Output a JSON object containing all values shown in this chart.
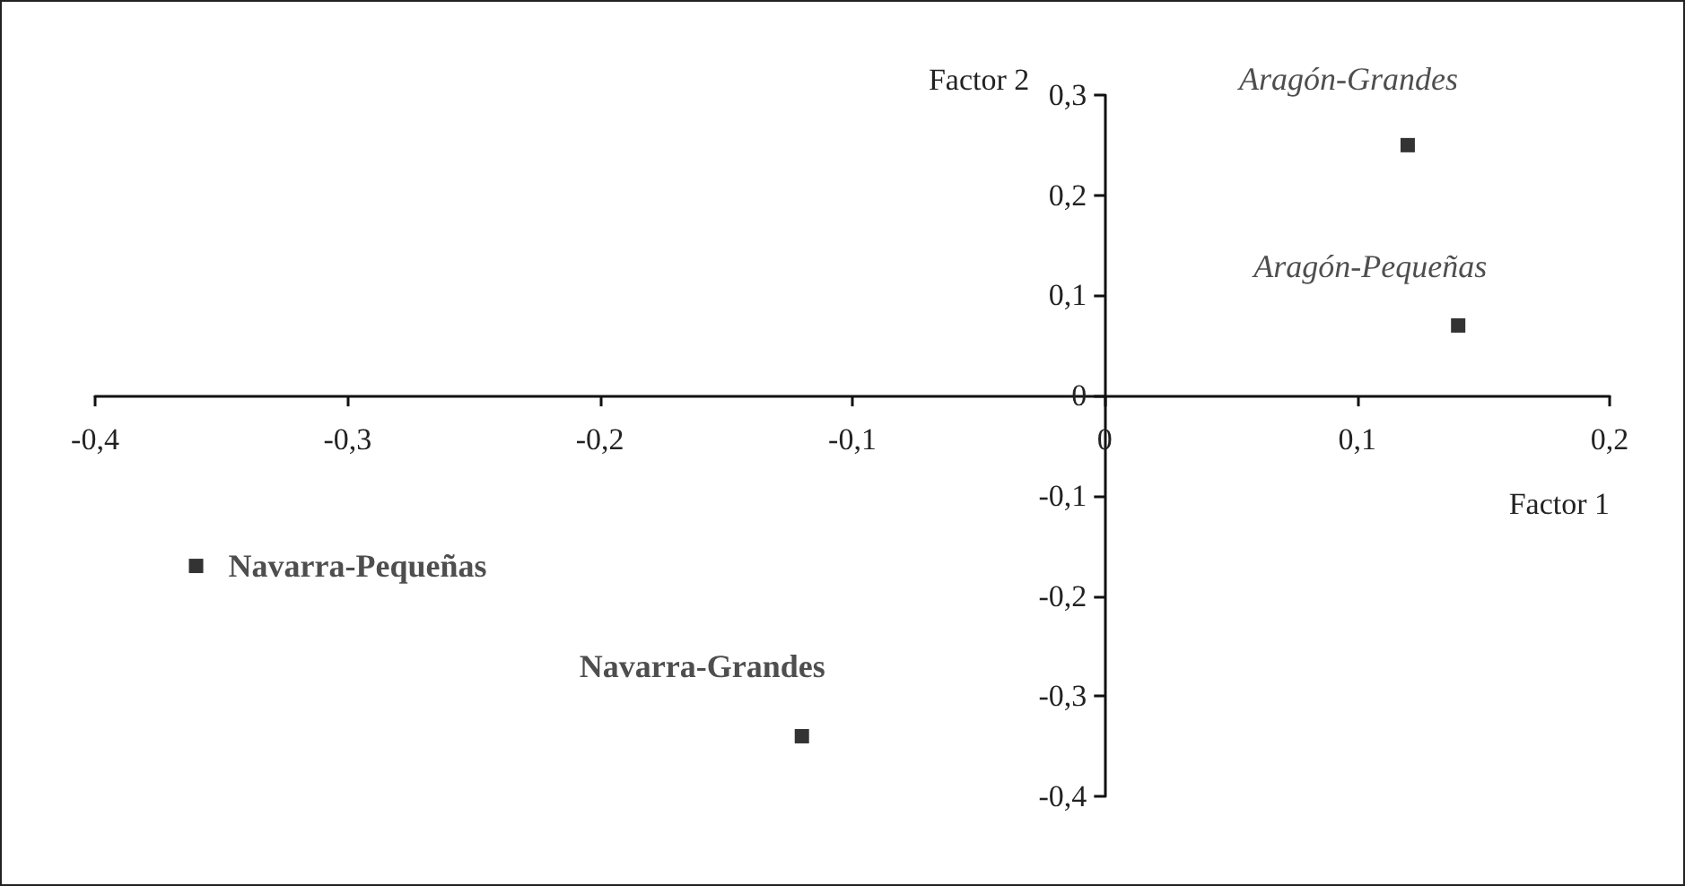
{
  "chart_data": {
    "type": "scatter",
    "xlabel": "Factor 1",
    "ylabel": "Factor 2",
    "xlim": [
      -0.4,
      0.2
    ],
    "xticks": [
      {
        "value": -0.4,
        "label": "-0,4"
      },
      {
        "value": -0.3,
        "label": "-0,3"
      },
      {
        "value": -0.2,
        "label": "-0,2"
      },
      {
        "value": -0.1,
        "label": "-0,1"
      },
      {
        "value": 0,
        "label": "0"
      },
      {
        "value": 0.1,
        "label": "0,1"
      },
      {
        "value": 0.2,
        "label": "0,2"
      }
    ],
    "ylim": [
      -0.4,
      0.3
    ],
    "yticks": [
      {
        "value": -0.4,
        "label": "-0,4"
      },
      {
        "value": -0.3,
        "label": "-0,3"
      },
      {
        "value": -0.2,
        "label": "-0,2"
      },
      {
        "value": -0.1,
        "label": "-0,1"
      },
      {
        "value": 0,
        "label": "0"
      },
      {
        "value": 0.1,
        "label": "0,1"
      },
      {
        "value": 0.2,
        "label": "0,2"
      },
      {
        "value": 0.3,
        "label": "0,3"
      }
    ],
    "legend": false,
    "marker": "square",
    "series": [
      {
        "name": "Aragón-Grandes",
        "color": "#000000",
        "x": [
          0.12
        ],
        "values": [
          0.25
        ]
      },
      {
        "name": "Aragón-Pequeñas",
        "color": "#000000",
        "x": [
          0.14
        ],
        "values": [
          0.07
        ]
      },
      {
        "name": "Navarra-Pequeñas",
        "color": "#000000",
        "x": [
          -0.36
        ],
        "values": [
          -0.17
        ]
      },
      {
        "name": "Navarra-Grandes",
        "color": "#000000",
        "x": [
          -0.12
        ],
        "values": [
          -0.34
        ]
      }
    ]
  }
}
